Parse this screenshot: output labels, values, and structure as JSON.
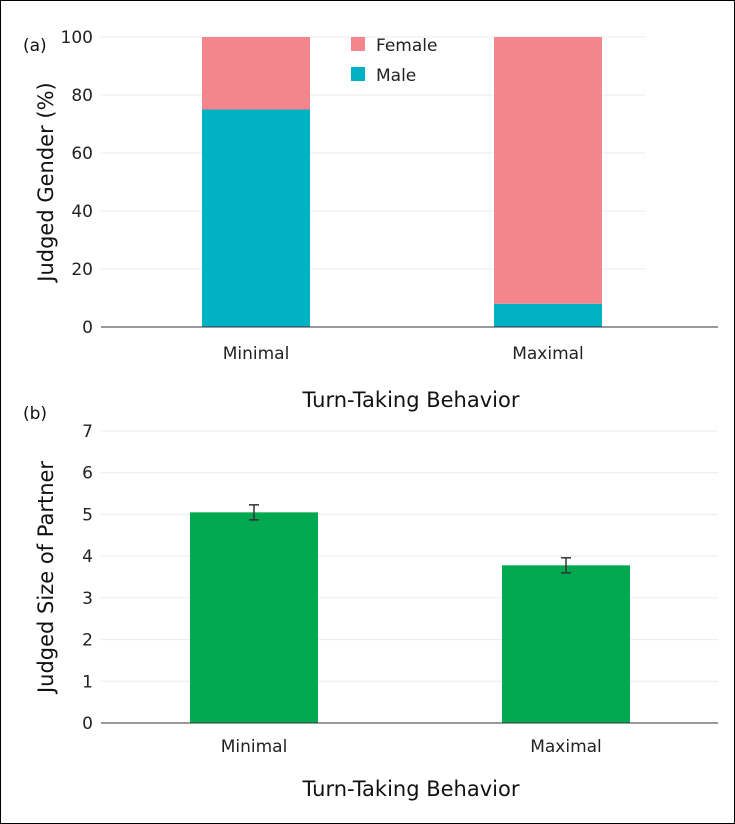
{
  "chart_data": [
    {
      "panel": "(a)",
      "type": "bar",
      "stacked": true,
      "title": "",
      "xlabel": "Turn-Taking Behavior",
      "ylabel": "Judged Gender (%)",
      "ylim": [
        0,
        100
      ],
      "yticks": [
        0,
        20,
        40,
        60,
        80,
        100
      ],
      "categories": [
        "Minimal",
        "Maximal"
      ],
      "series": [
        {
          "name": "Male",
          "color": "#00b2c4",
          "values": [
            75,
            8
          ]
        },
        {
          "name": "Female",
          "color": "#f3858d",
          "values": [
            25,
            92
          ]
        }
      ],
      "legend": [
        "Female",
        "Male"
      ],
      "legend_position": "top-center",
      "grid": true
    },
    {
      "panel": "(b)",
      "type": "bar",
      "title": "",
      "xlabel": "Turn-Taking Behavior",
      "ylabel": "Judged Size of Partner",
      "ylim": [
        0,
        7
      ],
      "yticks": [
        0,
        1,
        2,
        3,
        4,
        5,
        6,
        7
      ],
      "categories": [
        "Minimal",
        "Maximal"
      ],
      "values": [
        5.05,
        3.78
      ],
      "error": [
        0.18,
        0.18
      ],
      "color": "#00a84f",
      "grid": true
    }
  ]
}
